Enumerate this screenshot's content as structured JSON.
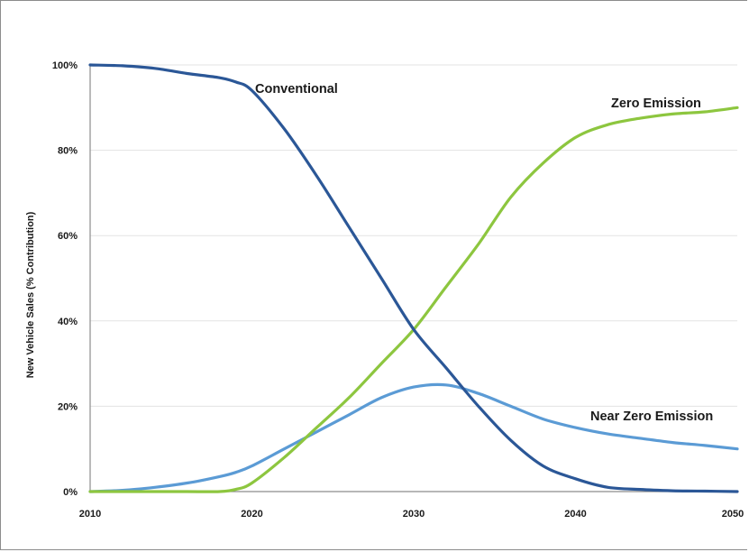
{
  "chart_data": {
    "type": "line",
    "title": "",
    "xlabel": "",
    "ylabel": "New Vehicle Sales (% Contribution)",
    "xlim": [
      2010,
      2050
    ],
    "ylim": [
      0,
      100
    ],
    "x_ticks": [
      "2010",
      "2020",
      "2030",
      "2040",
      "2050"
    ],
    "y_ticks": [
      "0%",
      "20%",
      "40%",
      "60%",
      "80%",
      "100%"
    ],
    "grid": "horizontal",
    "legend": "none (series labeled directly on chart)",
    "x": [
      2010,
      2012,
      2014,
      2016,
      2018,
      2019,
      2020,
      2022,
      2024,
      2026,
      2028,
      2030,
      2032,
      2034,
      2036,
      2038,
      2040,
      2042,
      2044,
      2046,
      2048,
      2050
    ],
    "series": [
      {
        "name": "Conventional",
        "color": "#2b5797",
        "values": [
          100,
          99.8,
          99.2,
          98,
          97,
          96,
          94,
          85,
          74,
          62,
          50,
          38,
          29,
          20,
          12,
          6,
          3,
          1,
          0.5,
          0.2,
          0.1,
          0
        ]
      },
      {
        "name": "Zero Emission",
        "color": "#8dc63f",
        "values": [
          0,
          0,
          0,
          0,
          0,
          0.5,
          2,
          8,
          15,
          22,
          30,
          38,
          48,
          58,
          69,
          77,
          83,
          86,
          87.5,
          88.5,
          89,
          90
        ]
      },
      {
        "name": "Near Zero Emission",
        "color": "#5b9bd5",
        "values": [
          0,
          0.3,
          1,
          2,
          3.5,
          4.5,
          6,
          10,
          14,
          18,
          22,
          24.5,
          25,
          23,
          20,
          17,
          15,
          13.5,
          12.5,
          11.5,
          10.8,
          10
        ]
      }
    ]
  }
}
